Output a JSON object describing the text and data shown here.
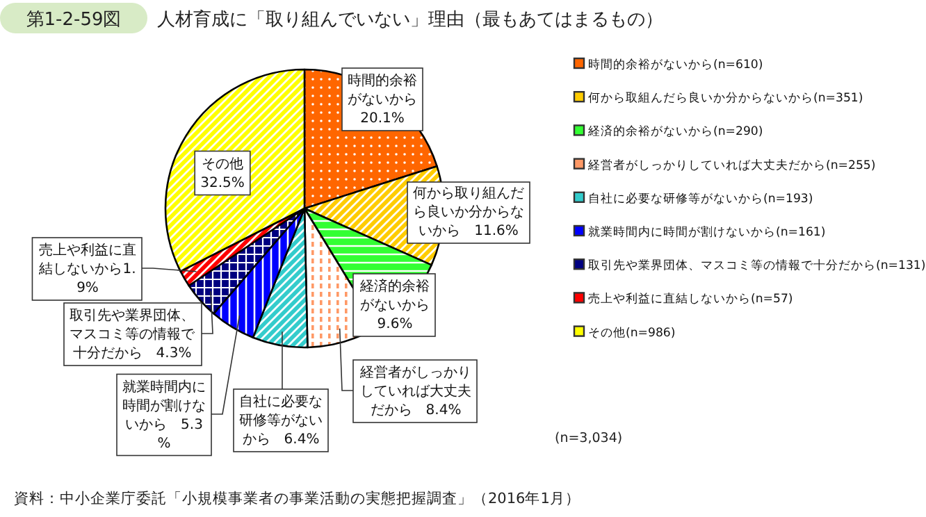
{
  "chart_data": {
    "type": "pie",
    "subtitle": "第1-2-59図",
    "title": "人材育成に「取り組んでいない」理由（最もあてはまるもの）",
    "categories": [
      "時間的余裕がないから(n=610)",
      "何から取組んだら良いか分からないから(n=351)",
      "経済的余裕がないから(n=290)",
      "経営者がしっかりしていれば大丈夫だから(n=255)",
      "自社に必要な研修等がないから(n=193)",
      "就業時間内に時間が割けないから(n=161)",
      "取引先や業界団体、マスコミ等の情報で十分だから(n=131)",
      "売上や利益に直結しないから(n=57)",
      "その他(n=986)"
    ],
    "values": [
      20.1,
      11.6,
      9.6,
      8.4,
      6.4,
      5.3,
      4.3,
      1.9,
      32.5
    ],
    "colors": [
      "#ff6600",
      "#ffcc00",
      "#33ff33",
      "#ff9966",
      "#33cccc",
      "#0000ff",
      "#000080",
      "#ff0000",
      "#ffff00"
    ],
    "value_labels": [
      "時間的余裕がないから20.1%",
      "何から取り組んだら良いか分からないから　11.6%",
      "経済的余裕がないから9.6%",
      "経営者がしっかりしていれば大丈夫だから　8.4%",
      "自社に必要な研修等がないから　6.4%",
      "就業時間内に時間が割けないから　5.3%",
      "取引先や業界団体、マスコミ等の情報で十分だから　4.3%",
      "売上や利益に直結しないから1.9%",
      "その他32.5%"
    ],
    "legend": "right",
    "annotations": [
      "(n=3,034)",
      "資料：中小企業庁委託「小規模事業者の事業活動の実態把握調査」（2016年1月）"
    ]
  }
}
